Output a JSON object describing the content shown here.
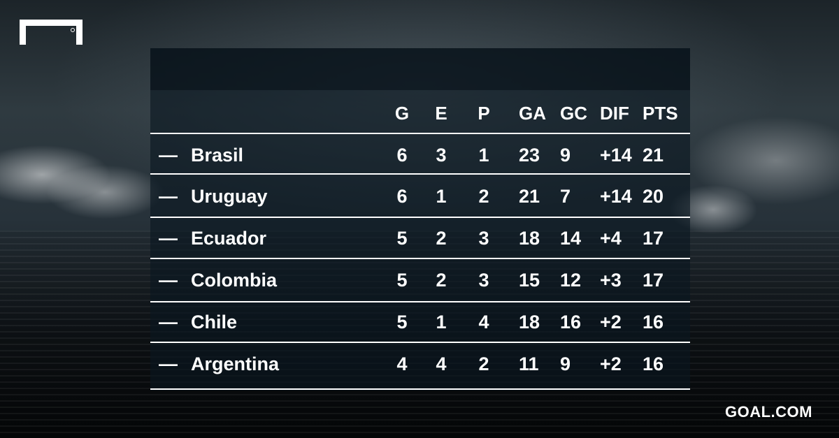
{
  "header": {
    "columns": [
      "G",
      "E",
      "P",
      "GA",
      "GC",
      "DIF",
      "PTS"
    ]
  },
  "rows": [
    {
      "trend": "—",
      "team": "Brasil",
      "g": "6",
      "e": "3",
      "p": "1",
      "ga": "23",
      "gc": "9",
      "dif": "+14",
      "pts": "21"
    },
    {
      "trend": "—",
      "team": "Uruguay",
      "g": "6",
      "e": "1",
      "p": "2",
      "ga": "21",
      "gc": "7",
      "dif": "+14",
      "pts": "20"
    },
    {
      "trend": "—",
      "team": "Ecuador",
      "g": "5",
      "e": "2",
      "p": "3",
      "ga": "18",
      "gc": "14",
      "dif": "+4",
      "pts": "17"
    },
    {
      "trend": "—",
      "team": "Colombia",
      "g": "5",
      "e": "2",
      "p": "3",
      "ga": "15",
      "gc": "12",
      "dif": "+3",
      "pts": "17"
    },
    {
      "trend": "—",
      "team": "Chile",
      "g": "5",
      "e": "1",
      "p": "4",
      "ga": "18",
      "gc": "16",
      "dif": "+2",
      "pts": "16"
    },
    {
      "trend": "—",
      "team": "Argentina",
      "g": "4",
      "e": "4",
      "p": "2",
      "ga": "11",
      "gc": "9",
      "dif": "+2",
      "pts": "16"
    }
  ],
  "branding": {
    "site": "GOAL.COM",
    "logo_icon": "goal-frame-logo"
  },
  "colors": {
    "text": "#ffffff",
    "panel": "#0a1620"
  }
}
